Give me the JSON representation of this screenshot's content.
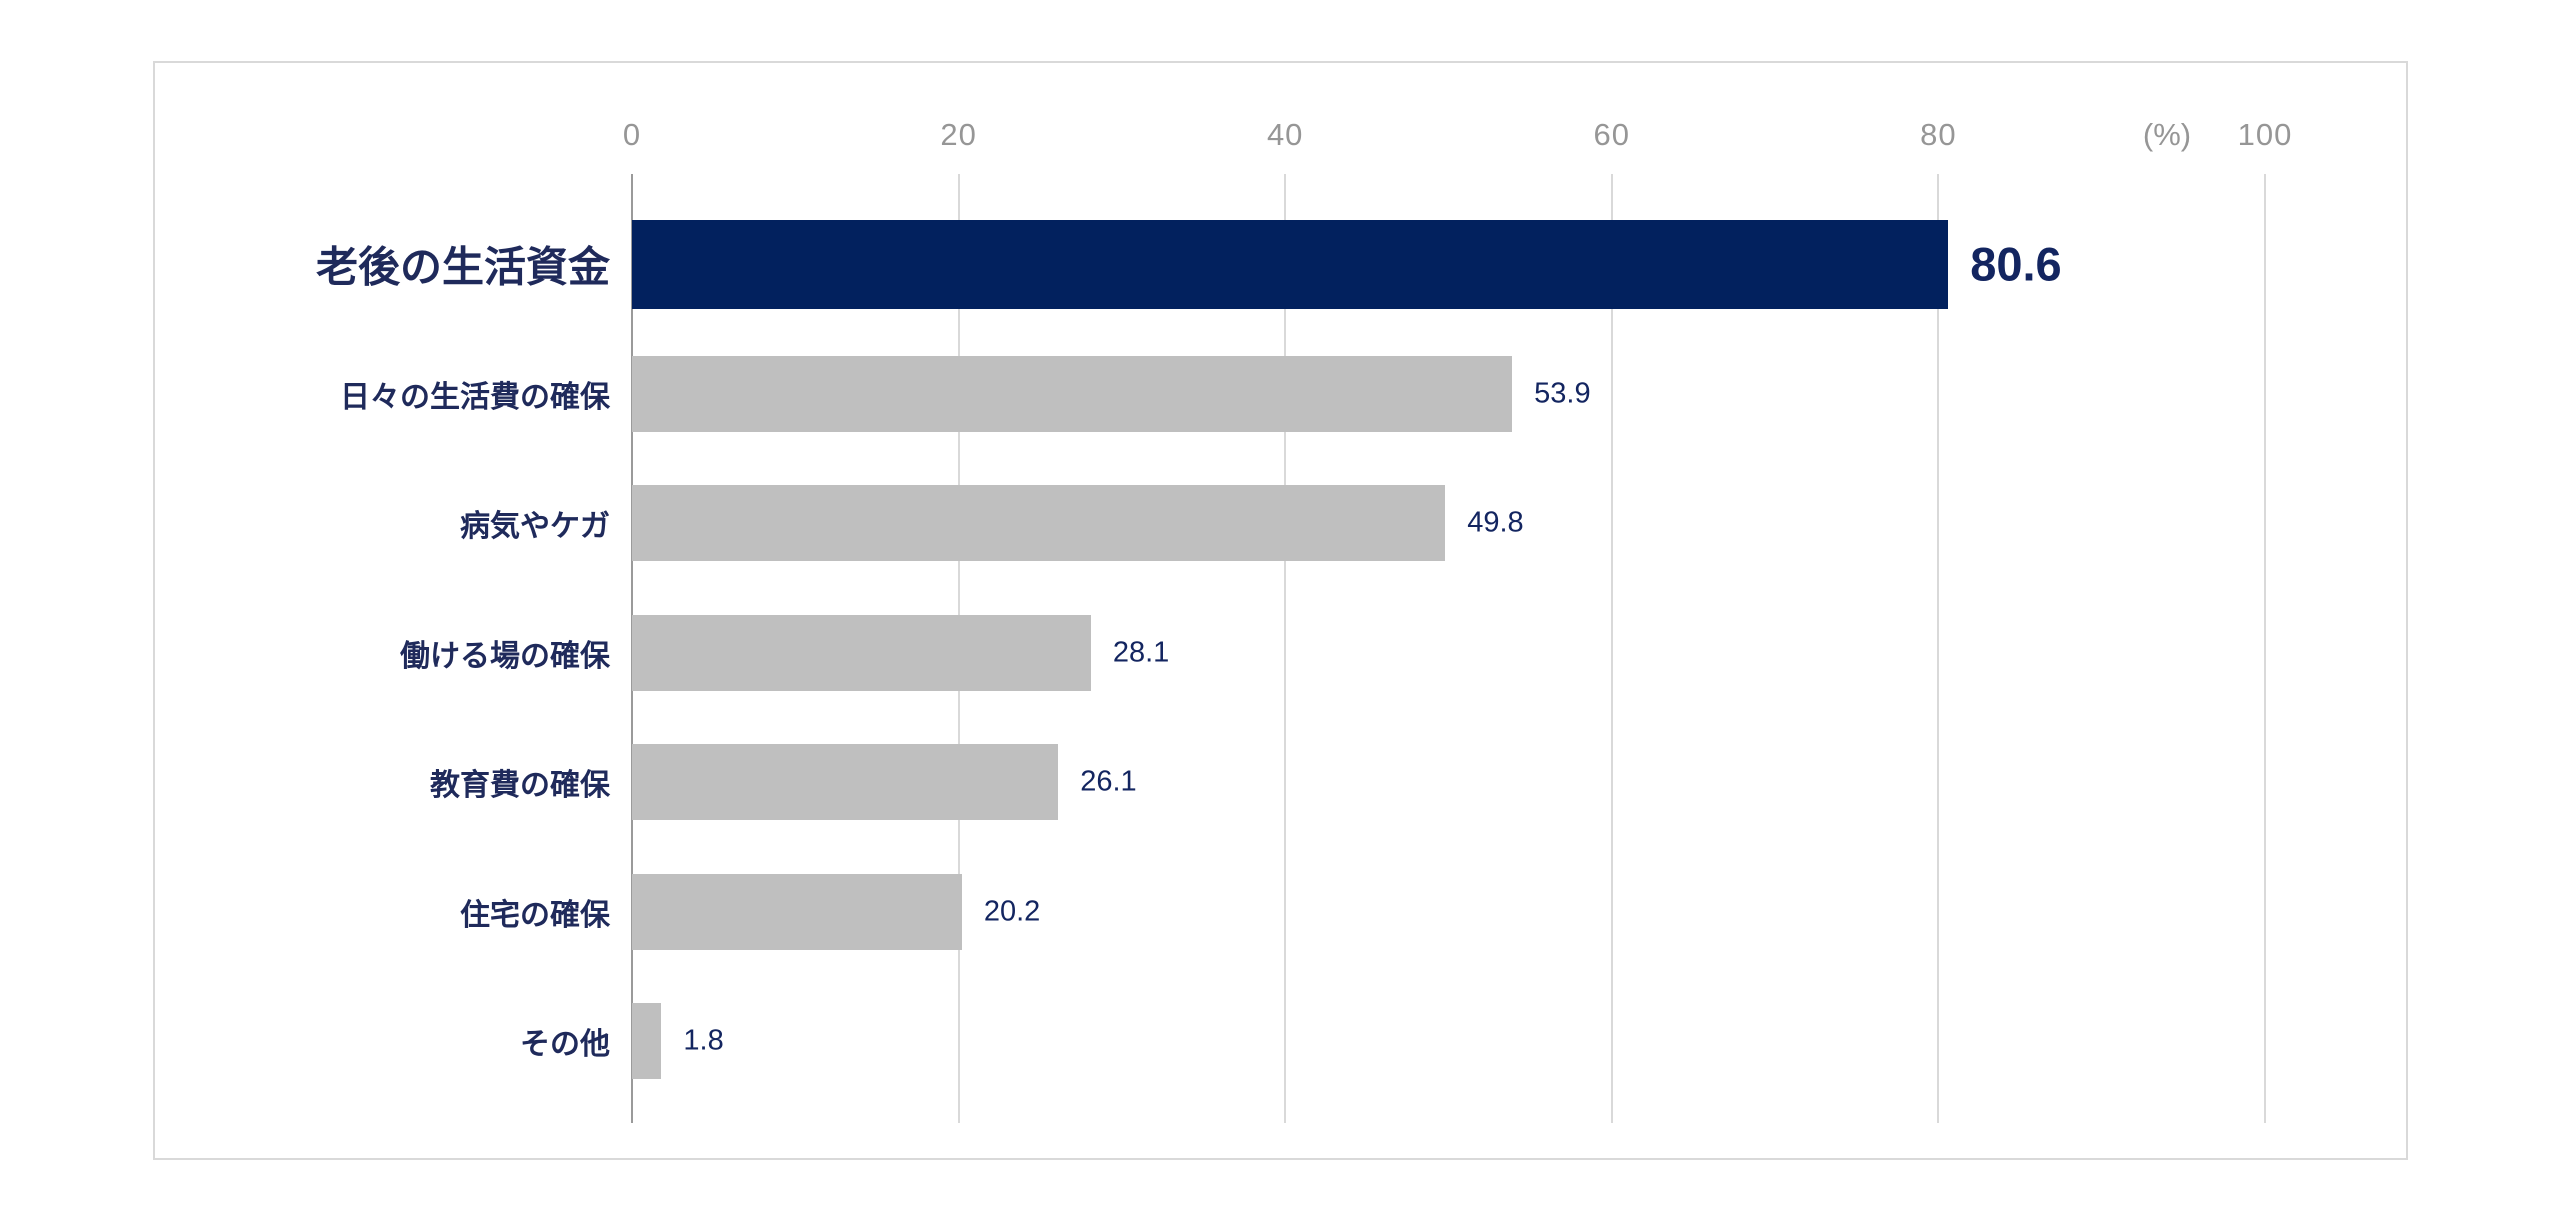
{
  "chart_data": {
    "type": "bar",
    "orientation": "horizontal",
    "categories": [
      "老後の生活資金",
      "日々の生活費の確保",
      "病気やケガ",
      "働ける場の確保",
      "教育費の確保",
      "住宅の確保",
      "その他"
    ],
    "values": [
      80.6,
      53.9,
      49.8,
      28.1,
      26.1,
      20.2,
      1.8
    ],
    "value_labels": [
      "80.6",
      "53.9",
      "49.8",
      "28.1",
      "26.1",
      "20.2",
      "1.8"
    ],
    "highlight_index": 0,
    "x_ticks": [
      0,
      20,
      40,
      60,
      80,
      100
    ],
    "xlim": [
      0,
      100
    ],
    "unit_label": "(%)",
    "grid": true,
    "legend": "none",
    "title": "",
    "xlabel": "",
    "ylabel": "",
    "colors": {
      "highlight_bar": "#02215e",
      "bar": "#bfbfbf",
      "category_text": "#1f2a5b",
      "value_text": "#132560",
      "tick_text": "#969696",
      "gridline": "#d9d9d9",
      "axis_line": "#9a9a9a",
      "frame_border": "#d9d9d9",
      "background": "#ffffff"
    }
  }
}
